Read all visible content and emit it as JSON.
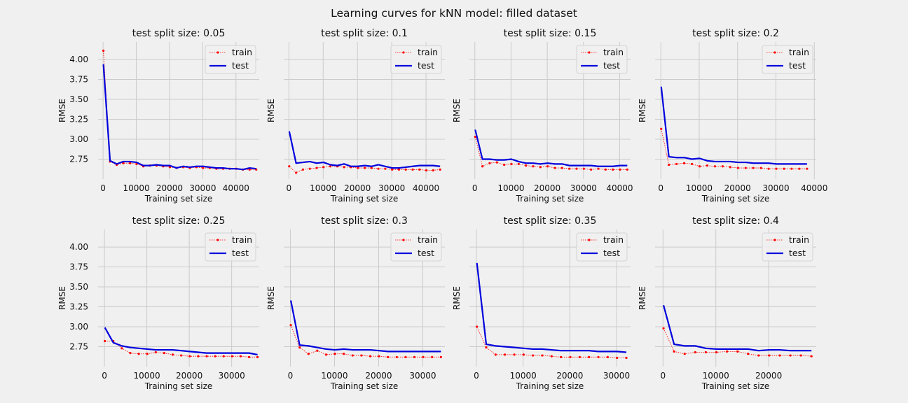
{
  "figure": {
    "title": "Learning curves for kNN model: filled dataset"
  },
  "colors": {
    "background": "#f0f0f0",
    "grid": "#cbcbcb",
    "train": "#ff0000",
    "test": "#0000dd"
  },
  "chart_data": [
    {
      "type": "line",
      "title": "test split size: 0.05",
      "xlabel": "Training set size",
      "ylabel": "RMSE",
      "show_ytick_labels": true,
      "xlim": [
        -1500,
        47000
      ],
      "ylim": [
        2.5,
        4.22
      ],
      "xticks": [
        0,
        10000,
        20000,
        30000,
        40000
      ],
      "yticks": [
        2.75,
        3.0,
        3.25,
        3.5,
        3.75,
        4.0
      ],
      "ytick_labels": [
        "2.75",
        "3.00",
        "3.25",
        "3.50",
        "3.75",
        "4.00"
      ],
      "legend": {
        "position": "top-right",
        "entries": [
          "train",
          "test"
        ]
      },
      "grid": true,
      "x": [
        100,
        2100,
        4100,
        6100,
        8100,
        10100,
        12100,
        14100,
        16100,
        18100,
        20100,
        22100,
        24100,
        26100,
        28100,
        30100,
        32100,
        34100,
        36100,
        38100,
        40100,
        42100,
        44100,
        46100
      ],
      "series": [
        {
          "name": "train",
          "style": "dotted-markers",
          "values": [
            4.11,
            2.72,
            2.68,
            2.7,
            2.7,
            2.69,
            2.66,
            2.67,
            2.67,
            2.66,
            2.65,
            2.64,
            2.65,
            2.64,
            2.65,
            2.64,
            2.64,
            2.63,
            2.63,
            2.63,
            2.63,
            2.62,
            2.62,
            2.62
          ]
        },
        {
          "name": "test",
          "style": "solid",
          "values": [
            3.94,
            2.73,
            2.69,
            2.72,
            2.72,
            2.71,
            2.67,
            2.67,
            2.68,
            2.67,
            2.67,
            2.64,
            2.66,
            2.65,
            2.66,
            2.66,
            2.65,
            2.64,
            2.64,
            2.63,
            2.63,
            2.62,
            2.64,
            2.63
          ]
        }
      ]
    },
    {
      "type": "line",
      "title": "test split size: 0.1",
      "xlabel": "Training set size",
      "ylabel": "RMSE",
      "show_ytick_labels": false,
      "xlim": [
        -1500,
        45500
      ],
      "ylim": [
        2.5,
        4.22
      ],
      "xticks": [
        0,
        10000,
        20000,
        30000,
        40000
      ],
      "yticks": [
        2.75,
        3.0,
        3.25,
        3.5,
        3.75,
        4.0
      ],
      "legend": {
        "position": "top-right",
        "entries": [
          "train",
          "test"
        ]
      },
      "grid": true,
      "x": [
        100,
        2100,
        4100,
        6100,
        8100,
        10100,
        12100,
        14100,
        16100,
        18100,
        20100,
        22100,
        24100,
        26100,
        28100,
        30100,
        32100,
        34100,
        36100,
        38100,
        40100,
        42100,
        44100
      ],
      "series": [
        {
          "name": "train",
          "style": "dotted-markers",
          "values": [
            2.66,
            2.58,
            2.62,
            2.63,
            2.64,
            2.65,
            2.66,
            2.66,
            2.65,
            2.65,
            2.64,
            2.64,
            2.64,
            2.63,
            2.63,
            2.62,
            2.62,
            2.62,
            2.62,
            2.62,
            2.61,
            2.61,
            2.62
          ]
        },
        {
          "name": "test",
          "style": "solid",
          "values": [
            3.1,
            2.7,
            2.71,
            2.72,
            2.7,
            2.71,
            2.68,
            2.67,
            2.69,
            2.66,
            2.66,
            2.67,
            2.66,
            2.68,
            2.66,
            2.64,
            2.64,
            2.65,
            2.66,
            2.67,
            2.67,
            2.67,
            2.66
          ]
        }
      ]
    },
    {
      "type": "line",
      "title": "test split size: 0.15",
      "xlabel": "Training set size",
      "ylabel": "RMSE",
      "show_ytick_labels": false,
      "xlim": [
        -1500,
        43000
      ],
      "ylim": [
        2.5,
        4.22
      ],
      "xticks": [
        0,
        10000,
        20000,
        30000,
        40000
      ],
      "yticks": [
        2.75,
        3.0,
        3.25,
        3.5,
        3.75,
        4.0
      ],
      "legend": {
        "position": "top-right",
        "entries": [
          "train",
          "test"
        ]
      },
      "grid": true,
      "x": [
        100,
        2100,
        4100,
        6100,
        8100,
        10100,
        12100,
        14100,
        16100,
        18100,
        20100,
        22100,
        24100,
        26100,
        28100,
        30100,
        32100,
        34100,
        36100,
        38100,
        40100,
        42100
      ],
      "series": [
        {
          "name": "train",
          "style": "dotted-markers",
          "values": [
            3.03,
            2.66,
            2.7,
            2.71,
            2.68,
            2.69,
            2.69,
            2.67,
            2.66,
            2.65,
            2.66,
            2.64,
            2.64,
            2.63,
            2.63,
            2.63,
            2.62,
            2.63,
            2.62,
            2.62,
            2.62,
            2.62
          ]
        },
        {
          "name": "test",
          "style": "solid",
          "values": [
            3.12,
            2.75,
            2.75,
            2.74,
            2.74,
            2.75,
            2.72,
            2.7,
            2.7,
            2.69,
            2.7,
            2.69,
            2.69,
            2.67,
            2.67,
            2.67,
            2.67,
            2.66,
            2.66,
            2.66,
            2.67,
            2.67
          ]
        }
      ]
    },
    {
      "type": "line",
      "title": "test split size: 0.2",
      "xlabel": "Training set size",
      "ylabel": "RMSE",
      "show_ytick_labels": false,
      "xlim": [
        -1500,
        40500
      ],
      "ylim": [
        2.5,
        4.22
      ],
      "xticks": [
        0,
        10000,
        20000,
        30000,
        40000
      ],
      "yticks": [
        2.75,
        3.0,
        3.25,
        3.5,
        3.75,
        4.0
      ],
      "legend": {
        "position": "top-right",
        "entries": [
          "train",
          "test"
        ]
      },
      "grid": true,
      "x": [
        100,
        2100,
        4100,
        6100,
        8100,
        10100,
        12100,
        14100,
        16100,
        18100,
        20100,
        22100,
        24100,
        26100,
        28100,
        30100,
        32100,
        34100,
        36100,
        38100
      ],
      "series": [
        {
          "name": "train",
          "style": "dotted-markers",
          "values": [
            3.13,
            2.68,
            2.69,
            2.7,
            2.69,
            2.66,
            2.67,
            2.66,
            2.66,
            2.65,
            2.64,
            2.64,
            2.64,
            2.64,
            2.63,
            2.63,
            2.63,
            2.63,
            2.63,
            2.63
          ]
        },
        {
          "name": "test",
          "style": "solid",
          "values": [
            3.66,
            2.78,
            2.77,
            2.77,
            2.75,
            2.76,
            2.73,
            2.72,
            2.72,
            2.72,
            2.71,
            2.71,
            2.7,
            2.7,
            2.7,
            2.69,
            2.69,
            2.69,
            2.69,
            2.69
          ]
        }
      ]
    },
    {
      "type": "line",
      "title": "test split size: 0.25",
      "xlabel": "Training set size",
      "ylabel": "RMSE",
      "show_ytick_labels": true,
      "xlim": [
        -1500,
        36500
      ],
      "ylim": [
        2.5,
        4.22
      ],
      "xticks": [
        0,
        10000,
        20000,
        30000
      ],
      "yticks": [
        2.75,
        3.0,
        3.25,
        3.5,
        3.75,
        4.0
      ],
      "ytick_labels": [
        "2.75",
        "3.00",
        "3.25",
        "3.50",
        "3.75",
        "4.00"
      ],
      "legend": {
        "position": "top-right",
        "entries": [
          "train",
          "test"
        ]
      },
      "grid": true,
      "x": [
        100,
        2100,
        4100,
        6100,
        8100,
        10100,
        12100,
        14100,
        16100,
        18100,
        20100,
        22100,
        24100,
        26100,
        28100,
        30100,
        32100,
        34100,
        36100
      ],
      "series": [
        {
          "name": "train",
          "style": "dotted-markers",
          "values": [
            2.82,
            2.82,
            2.73,
            2.67,
            2.66,
            2.66,
            2.68,
            2.67,
            2.65,
            2.64,
            2.63,
            2.63,
            2.63,
            2.63,
            2.63,
            2.63,
            2.63,
            2.62,
            2.62
          ]
        },
        {
          "name": "test",
          "style": "solid",
          "values": [
            2.99,
            2.8,
            2.76,
            2.74,
            2.73,
            2.72,
            2.71,
            2.71,
            2.71,
            2.7,
            2.69,
            2.68,
            2.67,
            2.67,
            2.67,
            2.67,
            2.67,
            2.67,
            2.65
          ]
        }
      ]
    },
    {
      "type": "line",
      "title": "test split size: 0.3",
      "xlabel": "Training set size",
      "ylabel": "RMSE",
      "show_ytick_labels": false,
      "xlim": [
        -1500,
        35000
      ],
      "ylim": [
        2.5,
        4.22
      ],
      "xticks": [
        0,
        10000,
        20000,
        30000
      ],
      "yticks": [
        2.75,
        3.0,
        3.25,
        3.5,
        3.75,
        4.0
      ],
      "legend": {
        "position": "top-right",
        "entries": [
          "train",
          "test"
        ]
      },
      "grid": true,
      "x": [
        100,
        2100,
        4100,
        6100,
        8100,
        10100,
        12100,
        14100,
        16100,
        18100,
        20100,
        22100,
        24100,
        26100,
        28100,
        30100,
        32100,
        34100
      ],
      "series": [
        {
          "name": "train",
          "style": "dotted-markers",
          "values": [
            3.02,
            2.74,
            2.66,
            2.7,
            2.65,
            2.66,
            2.66,
            2.64,
            2.64,
            2.63,
            2.63,
            2.62,
            2.62,
            2.62,
            2.62,
            2.62,
            2.62,
            2.62
          ]
        },
        {
          "name": "test",
          "style": "solid",
          "values": [
            3.33,
            2.77,
            2.76,
            2.74,
            2.72,
            2.71,
            2.72,
            2.71,
            2.71,
            2.71,
            2.7,
            2.69,
            2.69,
            2.69,
            2.69,
            2.69,
            2.69,
            2.69
          ]
        }
      ]
    },
    {
      "type": "line",
      "title": "test split size: 0.35",
      "xlabel": "Training set size",
      "ylabel": "RMSE",
      "show_ytick_labels": false,
      "xlim": [
        -1500,
        33000
      ],
      "ylim": [
        2.5,
        4.22
      ],
      "xticks": [
        0,
        10000,
        20000,
        30000
      ],
      "yticks": [
        2.75,
        3.0,
        3.25,
        3.5,
        3.75,
        4.0
      ],
      "legend": {
        "position": "top-right",
        "entries": [
          "train",
          "test"
        ]
      },
      "grid": true,
      "x": [
        100,
        2100,
        4100,
        6100,
        8100,
        10100,
        12100,
        14100,
        16100,
        18100,
        20100,
        22100,
        24100,
        26100,
        28100,
        30100,
        32100
      ],
      "series": [
        {
          "name": "train",
          "style": "dotted-markers",
          "values": [
            3.0,
            2.74,
            2.65,
            2.65,
            2.65,
            2.65,
            2.64,
            2.64,
            2.63,
            2.62,
            2.62,
            2.62,
            2.62,
            2.62,
            2.62,
            2.61,
            2.61
          ]
        },
        {
          "name": "test",
          "style": "solid",
          "values": [
            3.8,
            2.78,
            2.76,
            2.75,
            2.74,
            2.73,
            2.72,
            2.72,
            2.71,
            2.7,
            2.7,
            2.7,
            2.7,
            2.69,
            2.69,
            2.69,
            2.68
          ]
        }
      ]
    },
    {
      "type": "line",
      "title": "test split size: 0.4",
      "xlabel": "Training set size",
      "ylabel": "RMSE",
      "show_ytick_labels": false,
      "xlim": [
        -1500,
        29000
      ],
      "ylim": [
        2.5,
        4.22
      ],
      "xticks": [
        0,
        10000,
        20000
      ],
      "yticks": [
        2.75,
        3.0,
        3.25,
        3.5,
        3.75,
        4.0
      ],
      "legend": {
        "position": "top-right",
        "entries": [
          "train",
          "test"
        ]
      },
      "grid": true,
      "x": [
        100,
        2100,
        4100,
        6100,
        8100,
        10100,
        12100,
        14100,
        16100,
        18100,
        20100,
        22100,
        24100,
        26100,
        28100
      ],
      "series": [
        {
          "name": "train",
          "style": "dotted-markers",
          "values": [
            2.98,
            2.69,
            2.66,
            2.68,
            2.68,
            2.68,
            2.69,
            2.69,
            2.66,
            2.64,
            2.64,
            2.64,
            2.64,
            2.64,
            2.63
          ]
        },
        {
          "name": "test",
          "style": "solid",
          "values": [
            3.27,
            2.78,
            2.76,
            2.76,
            2.73,
            2.72,
            2.72,
            2.72,
            2.72,
            2.7,
            2.71,
            2.71,
            2.7,
            2.7,
            2.7
          ]
        }
      ]
    }
  ]
}
